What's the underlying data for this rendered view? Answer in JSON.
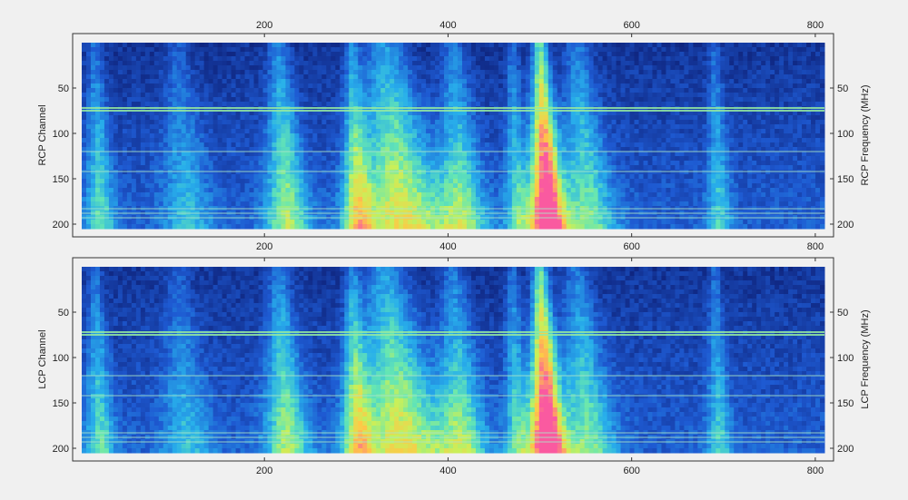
{
  "chart_data": [
    {
      "type": "heatmap",
      "panel": "RCP",
      "ylabel": "RCP  Channel",
      "ylabel_right": "RCP  Frequency (MHz)",
      "x_ticks": [
        200,
        400,
        600,
        800
      ],
      "y_ticks": [
        50,
        100,
        150,
        200
      ],
      "y_ticks_right": [
        50,
        100,
        150,
        200
      ],
      "xlim": [
        1,
        810
      ],
      "ylim": [
        0,
        205
      ],
      "y_reversed": true,
      "colormap": "jet",
      "bands": [
        {
          "x": 15,
          "width": 12,
          "level": 0.35
        },
        {
          "x": 105,
          "width": 20,
          "level": 0.25
        },
        {
          "x": 215,
          "width": 18,
          "level": 0.45
        },
        {
          "x": 295,
          "width": 12,
          "level": 0.45
        },
        {
          "x": 330,
          "width": 35,
          "level": 0.55
        },
        {
          "x": 405,
          "width": 20,
          "level": 0.4
        },
        {
          "x": 470,
          "width": 10,
          "level": 0.35
        },
        {
          "x": 500,
          "width": 14,
          "level": 0.95
        },
        {
          "x": 540,
          "width": 22,
          "level": 0.4
        },
        {
          "x": 690,
          "width": 10,
          "level": 0.3
        }
      ],
      "rfi_rows": [
        72,
        75,
        120,
        142,
        183,
        188,
        193
      ]
    },
    {
      "type": "heatmap",
      "panel": "LCP",
      "ylabel": "LCP  Channel",
      "ylabel_right": "LCP  Frequency (MHz)",
      "x_ticks": [
        200,
        400,
        600,
        800
      ],
      "y_ticks": [
        50,
        100,
        150,
        200
      ],
      "y_ticks_right": [
        50,
        100,
        150,
        200
      ],
      "xlim": [
        1,
        810
      ],
      "ylim": [
        0,
        205
      ],
      "y_reversed": true,
      "colormap": "jet",
      "bands": [
        {
          "x": 15,
          "width": 12,
          "level": 0.35
        },
        {
          "x": 105,
          "width": 20,
          "level": 0.25
        },
        {
          "x": 215,
          "width": 18,
          "level": 0.45
        },
        {
          "x": 295,
          "width": 12,
          "level": 0.45
        },
        {
          "x": 330,
          "width": 35,
          "level": 0.55
        },
        {
          "x": 405,
          "width": 20,
          "level": 0.4
        },
        {
          "x": 470,
          "width": 10,
          "level": 0.35
        },
        {
          "x": 500,
          "width": 14,
          "level": 0.95
        },
        {
          "x": 540,
          "width": 22,
          "level": 0.4
        },
        {
          "x": 690,
          "width": 10,
          "level": 0.3
        }
      ],
      "rfi_rows": [
        72,
        75,
        120,
        142,
        183,
        188,
        193
      ]
    }
  ]
}
